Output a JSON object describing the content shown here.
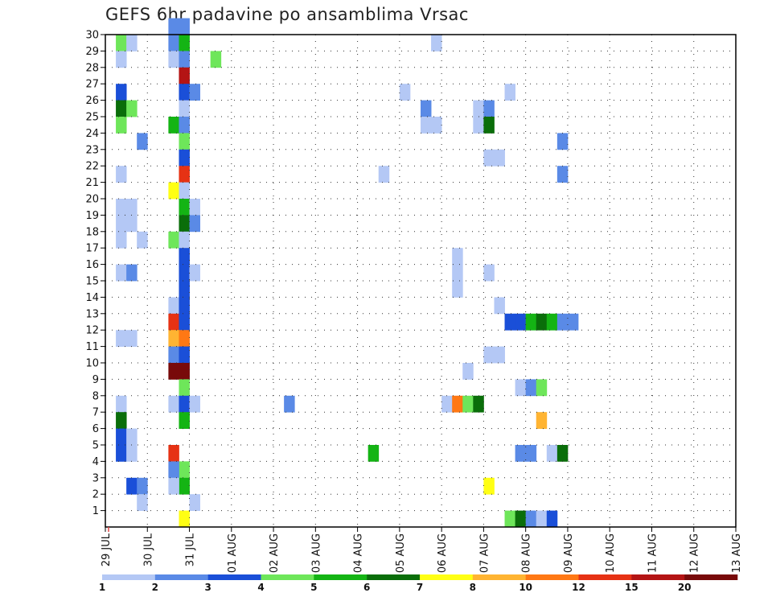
{
  "title": "GEFS 6hr padavine po ansamblima Vrsac",
  "chart_data": {
    "type": "heatmap",
    "title": "GEFS 6hr padavine po ansamblima Vrsac",
    "x_tick_labels": [
      "29 JUL",
      "30 JUL",
      "31 JUL",
      "01 AUG",
      "02 AUG",
      "03 AUG",
      "04 AUG",
      "05 AUG",
      "06 AUG",
      "07 AUG",
      "08 AUG",
      "09 AUG",
      "10 AUG",
      "11 AUG",
      "12 AUG",
      "13 AUG"
    ],
    "y_tick_labels": [
      "1",
      "2",
      "3",
      "4",
      "5",
      "6",
      "7",
      "8",
      "9",
      "10",
      "11",
      "12",
      "13",
      "14",
      "15",
      "16",
      "17",
      "18",
      "19",
      "20",
      "21",
      "22",
      "23",
      "24",
      "25",
      "26",
      "27",
      "28",
      "29",
      "30"
    ],
    "x_unit": "6-hour steps since 29 JUL",
    "x_range": [
      0,
      60
    ],
    "y_range": [
      0,
      30
    ],
    "grid": true,
    "colorbar": {
      "labels": [
        "1",
        "2",
        "3",
        "4",
        "5",
        "6",
        "7",
        "8",
        "10",
        "12",
        "15",
        "20"
      ],
      "colors": [
        "#b4c8f5",
        "#5a8ae6",
        "#1a4fd8",
        "#6ee65a",
        "#14b414",
        "#0a6e0a",
        "#ffff14",
        "#ffb432",
        "#ff7814",
        "#e63214",
        "#b41414",
        "#780a0a"
      ]
    },
    "cells": [
      [
        1,
        29,
        3
      ],
      [
        2,
        29,
        0
      ],
      [
        1,
        28,
        0
      ],
      [
        1,
        26,
        2
      ],
      [
        1,
        25,
        5
      ],
      [
        2,
        25,
        3
      ],
      [
        1,
        24,
        3
      ],
      [
        3,
        23,
        1
      ],
      [
        1,
        21,
        0
      ],
      [
        1,
        19,
        0
      ],
      [
        2,
        19,
        0
      ],
      [
        1,
        18,
        0
      ],
      [
        2,
        18,
        0
      ],
      [
        1,
        17,
        0
      ],
      [
        3,
        17,
        0
      ],
      [
        1,
        15,
        0
      ],
      [
        2,
        15,
        1
      ],
      [
        1,
        11,
        0
      ],
      [
        2,
        11,
        0
      ],
      [
        1,
        7,
        0
      ],
      [
        1,
        6,
        5
      ],
      [
        1,
        5,
        2
      ],
      [
        2,
        5,
        0
      ],
      [
        1,
        4,
        2
      ],
      [
        2,
        4,
        0
      ],
      [
        2,
        2,
        2
      ],
      [
        3,
        2,
        1
      ],
      [
        3,
        1,
        0
      ],
      [
        6,
        30,
        1
      ],
      [
        7,
        30,
        1
      ],
      [
        6,
        29,
        1
      ],
      [
        7,
        29,
        4
      ],
      [
        6,
        28,
        0
      ],
      [
        7,
        28,
        1
      ],
      [
        10,
        28,
        3
      ],
      [
        7,
        27,
        10
      ],
      [
        7,
        26,
        2
      ],
      [
        8,
        26,
        1
      ],
      [
        7,
        25,
        0
      ],
      [
        6,
        24,
        4
      ],
      [
        7,
        24,
        1
      ],
      [
        7,
        23,
        3
      ],
      [
        7,
        22,
        2
      ],
      [
        7,
        21,
        9
      ],
      [
        6,
        20,
        6
      ],
      [
        7,
        20,
        0
      ],
      [
        7,
        19,
        4
      ],
      [
        8,
        19,
        0
      ],
      [
        7,
        18,
        5
      ],
      [
        8,
        18,
        1
      ],
      [
        6,
        17,
        3
      ],
      [
        7,
        17,
        0
      ],
      [
        7,
        16,
        2
      ],
      [
        7,
        15,
        2
      ],
      [
        8,
        15,
        0
      ],
      [
        7,
        14,
        2
      ],
      [
        6,
        13,
        0
      ],
      [
        7,
        13,
        2
      ],
      [
        6,
        12,
        9
      ],
      [
        7,
        12,
        2
      ],
      [
        6,
        11,
        7
      ],
      [
        7,
        11,
        8
      ],
      [
        6,
        10,
        1
      ],
      [
        7,
        10,
        2
      ],
      [
        6,
        9,
        11
      ],
      [
        7,
        9,
        11
      ],
      [
        7,
        8,
        3
      ],
      [
        6,
        7,
        0
      ],
      [
        7,
        7,
        2
      ],
      [
        8,
        7,
        0
      ],
      [
        7,
        6,
        4
      ],
      [
        6,
        4,
        9
      ],
      [
        7,
        3,
        3
      ],
      [
        6,
        3,
        1
      ],
      [
        7,
        2,
        4
      ],
      [
        6,
        2,
        0
      ],
      [
        8,
        1,
        0
      ],
      [
        7,
        0,
        6
      ],
      [
        17,
        7,
        1
      ],
      [
        31,
        29,
        0
      ],
      [
        28,
        26,
        0
      ],
      [
        38,
        26,
        0
      ],
      [
        30,
        25,
        1
      ],
      [
        35,
        25,
        0
      ],
      [
        36,
        25,
        1
      ],
      [
        30,
        24,
        0
      ],
      [
        31,
        24,
        0
      ],
      [
        35,
        24,
        0
      ],
      [
        36,
        24,
        5
      ],
      [
        43,
        23,
        1
      ],
      [
        36,
        22,
        0
      ],
      [
        37,
        22,
        0
      ],
      [
        26,
        21,
        0
      ],
      [
        43,
        21,
        1
      ],
      [
        33,
        16,
        0
      ],
      [
        33,
        15,
        0
      ],
      [
        36,
        15,
        0
      ],
      [
        33,
        14,
        0
      ],
      [
        37,
        13,
        0
      ],
      [
        38,
        12,
        2
      ],
      [
        39,
        12,
        2
      ],
      [
        40,
        12,
        4
      ],
      [
        41,
        12,
        5
      ],
      [
        42,
        12,
        4
      ],
      [
        43,
        12,
        1
      ],
      [
        44,
        12,
        1
      ],
      [
        36,
        10,
        0
      ],
      [
        37,
        10,
        0
      ],
      [
        34,
        9,
        0
      ],
      [
        39,
        8,
        0
      ],
      [
        40,
        8,
        1
      ],
      [
        41,
        8,
        3
      ],
      [
        32,
        7,
        0
      ],
      [
        33,
        7,
        8
      ],
      [
        34,
        7,
        3
      ],
      [
        35,
        7,
        5
      ],
      [
        41,
        6,
        7
      ],
      [
        25,
        4,
        4
      ],
      [
        39,
        4,
        1
      ],
      [
        40,
        4,
        1
      ],
      [
        42,
        4,
        0
      ],
      [
        43,
        4,
        5
      ],
      [
        36,
        2,
        6
      ],
      [
        38,
        0,
        3
      ],
      [
        39,
        0,
        5
      ],
      [
        40,
        0,
        1
      ],
      [
        41,
        0,
        0
      ],
      [
        42,
        0,
        2
      ]
    ]
  }
}
